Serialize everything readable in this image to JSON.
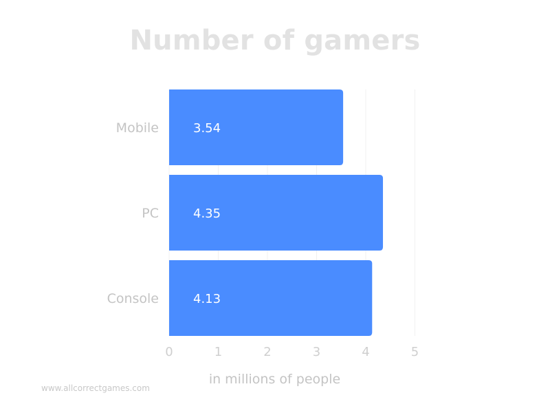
{
  "chart_data": {
    "type": "bar",
    "orientation": "horizontal",
    "title": "Number of gamers",
    "categories": [
      "Mobile",
      "PC",
      "Console"
    ],
    "values": [
      3.54,
      4.35,
      4.13
    ],
    "value_labels": [
      "3.54",
      "4.35",
      "4.13"
    ],
    "xlabel": "in millions of people",
    "ylabel": "",
    "xlim": [
      0,
      5
    ],
    "x_ticks": [
      "0",
      "1",
      "2",
      "3",
      "4",
      "5"
    ],
    "grid": "vertical",
    "bar_color": "#4a8cff"
  },
  "watermark": "www.allcorrectgames.com"
}
